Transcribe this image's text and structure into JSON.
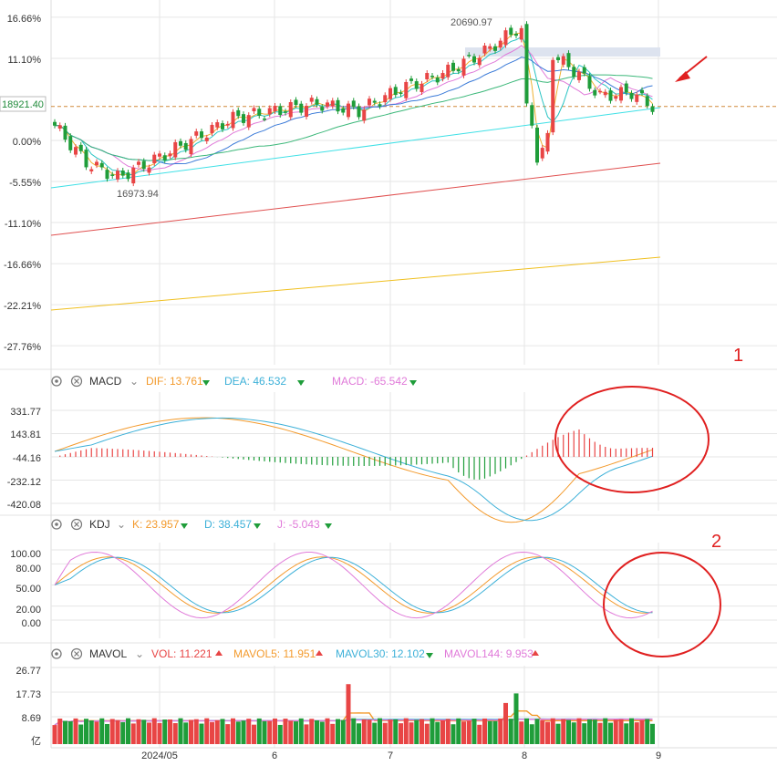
{
  "chart_data": {
    "type": "candlestick",
    "main": {
      "y_ticks": [
        "16.66%",
        "11.10%",
        "0.00%",
        "-5.55%",
        "-11.10%",
        "-16.66%",
        "-22.21%",
        "-27.76%"
      ],
      "y_tick_values": [
        16.66,
        11.1,
        0.0,
        -5.55,
        -11.1,
        -16.66,
        -22.21,
        -27.76
      ],
      "price_tag": "18921.40",
      "price_tag_pct": 4.6,
      "high_label": "20690.97",
      "low_label": "16973.94",
      "x_labels": [
        "2024/05",
        "6",
        "7",
        "8",
        "9"
      ],
      "ma_overlays": [
        "yellow",
        "light-blue",
        "green",
        "blue",
        "pink",
        "teal",
        "cyan",
        "red",
        "gold"
      ]
    },
    "macd": {
      "name": "MACD",
      "dif_label": "DIF: 13.761",
      "dea_label": "DEA: 46.532",
      "macd_label": "MACD: -65.542",
      "y_ticks": [
        "331.77",
        "143.81",
        "-44.16",
        "-232.12",
        "-420.08"
      ],
      "y_tick_values": [
        331.77,
        143.81,
        -44.16,
        -232.12,
        -420.08
      ]
    },
    "kdj": {
      "name": "KDJ",
      "k_label": "K: 23.957",
      "d_label": "D: 38.457",
      "j_label": "J: -5.043",
      "y_ticks": [
        "100.00",
        "80.00",
        "50.00",
        "20.00",
        "0.00"
      ],
      "y_tick_values": [
        100,
        80,
        50,
        20,
        0
      ]
    },
    "mavol": {
      "name": "MAVOL",
      "vol_label": "VOL: 11.221",
      "mavol5_label": "MAVOL5: 11.951",
      "mavol30_label": "MAVOL30: 12.102",
      "mavol144_label": "MAVOL144: 9.953",
      "y_ticks": [
        "26.77",
        "17.73",
        "8.69"
      ],
      "y_tick_values": [
        26.77,
        17.73,
        8.69
      ],
      "unit": "亿"
    },
    "annotations": [
      "1",
      "2"
    ]
  },
  "colors": {
    "up": "#e84545",
    "down": "#1f9d3a",
    "dif": "#f39a2c",
    "dea": "#3cb0d8",
    "k": "#f39a2c",
    "d": "#3cb0d8",
    "j": "#e07ad9",
    "circle": "#e02020",
    "grid": "#e6e6e6",
    "price_line": "#d08a3a"
  }
}
